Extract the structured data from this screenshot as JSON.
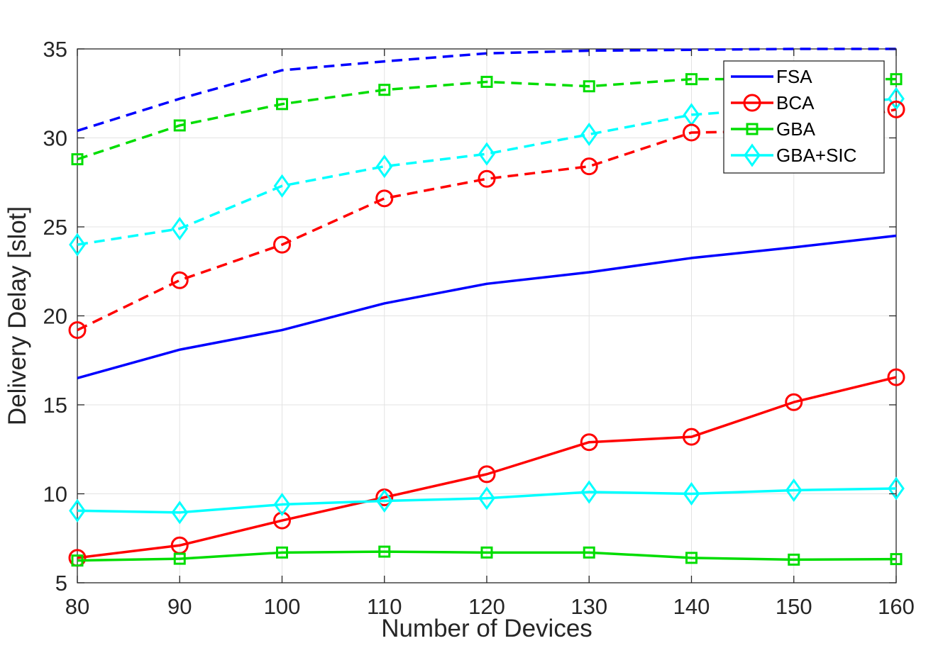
{
  "chart_data": {
    "type": "line",
    "xlabel": "Number of Devices",
    "ylabel": "Delivery Delay [slot]",
    "x": [
      80,
      90,
      100,
      110,
      120,
      130,
      140,
      150,
      160
    ],
    "xlim": [
      80,
      160
    ],
    "ylim": [
      5,
      35
    ],
    "xticks": [
      "80",
      "90",
      "100",
      "110",
      "120",
      "130",
      "140",
      "150",
      "160"
    ],
    "yticks": [
      "5",
      "10",
      "15",
      "20",
      "25",
      "30",
      "35"
    ],
    "grid": true,
    "legend_position": "top-right",
    "legend": [
      {
        "label": "FSA",
        "color": "#0000ff",
        "marker": "none"
      },
      {
        "label": "BCA",
        "color": "#ff0000",
        "marker": "circle"
      },
      {
        "label": "GBA",
        "color": "#00dd00",
        "marker": "square"
      },
      {
        "label": "GBA+SIC",
        "color": "#00ffff",
        "marker": "diamond"
      }
    ],
    "series": [
      {
        "name": "FSA",
        "style": "dashed",
        "color": "#0000ff",
        "marker": "none",
        "values": [
          30.4,
          32.2,
          33.8,
          34.3,
          34.75,
          34.9,
          34.95,
          35.0,
          35.0
        ]
      },
      {
        "name": "GBA",
        "style": "dashed",
        "color": "#00dd00",
        "marker": "square",
        "values": [
          28.8,
          30.7,
          31.9,
          32.7,
          33.15,
          32.9,
          33.3,
          33.3,
          33.3
        ]
      },
      {
        "name": "GBA+SIC",
        "style": "dashed",
        "color": "#00ffff",
        "marker": "diamond",
        "values": [
          24.0,
          24.9,
          27.3,
          28.4,
          29.1,
          30.2,
          31.3,
          31.7,
          32.2
        ]
      },
      {
        "name": "BCA",
        "style": "dashed",
        "color": "#ff0000",
        "marker": "circle",
        "values": [
          19.2,
          22.0,
          24.0,
          26.6,
          27.7,
          28.4,
          30.3,
          30.4,
          31.6
        ]
      },
      {
        "name": "FSA",
        "style": "solid",
        "color": "#0000ff",
        "marker": "none",
        "values": [
          16.5,
          18.1,
          19.2,
          20.7,
          21.8,
          22.45,
          23.25,
          23.85,
          24.5
        ]
      },
      {
        "name": "BCA",
        "style": "solid",
        "color": "#ff0000",
        "marker": "circle",
        "values": [
          6.4,
          7.1,
          8.5,
          9.8,
          11.1,
          12.9,
          13.2,
          15.15,
          16.55
        ]
      },
      {
        "name": "GBA+SIC",
        "style": "solid",
        "color": "#00ffff",
        "marker": "diamond",
        "values": [
          9.05,
          8.95,
          9.4,
          9.6,
          9.75,
          10.1,
          10.0,
          10.2,
          10.3
        ]
      },
      {
        "name": "GBA",
        "style": "solid",
        "color": "#00dd00",
        "marker": "square",
        "values": [
          6.25,
          6.35,
          6.7,
          6.75,
          6.7,
          6.7,
          6.4,
          6.3,
          6.33
        ]
      }
    ]
  }
}
